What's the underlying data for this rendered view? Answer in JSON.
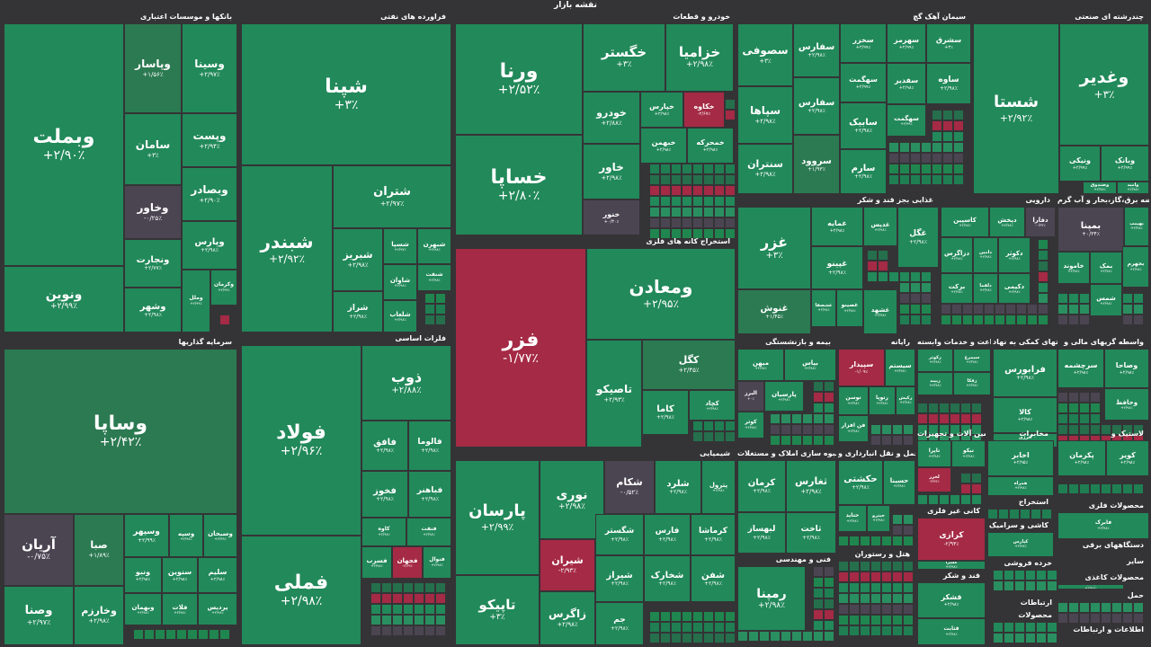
{
  "map_title": "نقشه بازار",
  "colors": {
    "up": "#22895a",
    "up_mid": "#2c7a52",
    "down": "#a52a45",
    "neutral": "#4b4552",
    "bg": "#343436"
  },
  "chart_data": {
    "type": "treemap",
    "title": "نقشه بازار",
    "sectors": [
      {
        "name": "بانکها و موسسات اعتباری",
        "tiles": [
          {
            "symbol": "وبملت",
            "change": "+۲/۹۰٪"
          },
          {
            "symbol": "وپاسار",
            "change": "+۱/۵۶٪"
          },
          {
            "symbol": "وسینا",
            "change": "+۲/۹۷٪"
          },
          {
            "symbol": "سامان",
            "change": "+۳٪"
          },
          {
            "symbol": "وپست",
            "change": "+۲/۹۴٪"
          },
          {
            "symbol": "وخاور",
            "change": "-۰/۲۵٪"
          },
          {
            "symbol": "وبصادر",
            "change": "+۲/۹۰٪"
          },
          {
            "symbol": "ونوین",
            "change": "+۲/۹۹٪"
          },
          {
            "symbol": "ونجارت",
            "change": "+۲/۷۷٪"
          },
          {
            "symbol": "وپارس",
            "change": "+۲/۹۸٪"
          },
          {
            "symbol": "وشهر",
            "change": "+۲/۹۸٪"
          },
          {
            "symbol": "وملل",
            "change": "+۲/۹۹٪"
          },
          {
            "symbol": "وکرمان",
            "change": "+۲/۹۹٪"
          }
        ]
      },
      {
        "name": "فراورده های نفتی",
        "tiles": [
          {
            "symbol": "شپنا",
            "change": "+۳٪"
          },
          {
            "symbol": "شبندر",
            "change": "+۲/۹۲٪"
          },
          {
            "symbol": "شتران",
            "change": "+۲/۹۷٪"
          },
          {
            "symbol": "شبریز",
            "change": "+۲/۹۸٪"
          },
          {
            "symbol": "شسپا",
            "change": "+۲/۹۷٪"
          },
          {
            "symbol": "شبهرن",
            "change": "+۲/۹۸٪"
          },
          {
            "symbol": "شراز",
            "change": "+۲/۹۸٪"
          },
          {
            "symbol": "شاوان",
            "change": "+۲/۹۸٪"
          },
          {
            "symbol": "شنفت",
            "change": "+۲/۹۸٪"
          },
          {
            "symbol": "شلعاب",
            "change": "+۲/۹۸٪"
          }
        ]
      },
      {
        "name": "خودرو و قطعات",
        "tiles": [
          {
            "symbol": "ورنا",
            "change": "+۲/۵۲٪"
          },
          {
            "symbol": "خگستر",
            "change": "+۳٪"
          },
          {
            "symbol": "خزامیا",
            "change": "+۲/۹۸٪"
          },
          {
            "symbol": "خساپا",
            "change": "+۲/۸۰٪"
          },
          {
            "symbol": "خودرو",
            "change": "+۲/۸۸٪"
          },
          {
            "symbol": "خپارس",
            "change": "+۲/۹۸٪"
          },
          {
            "symbol": "خکاوه",
            "change": "-۲/۶۷٪"
          },
          {
            "symbol": "خاور",
            "change": "+۲/۹۸٪"
          },
          {
            "symbol": "خبهمن",
            "change": "+۲/۹۸٪"
          },
          {
            "symbol": "خمحرکه",
            "change": "+۲/۹۸٪"
          },
          {
            "symbol": "خنور",
            "change": "+۰/۳۰٪"
          }
        ]
      },
      {
        "name": "سیمان آهک گچ",
        "tiles": [
          {
            "symbol": "سصوفی",
            "change": "+۳٪"
          },
          {
            "symbol": "سفارس",
            "change": "+۲/۹۸٪"
          },
          {
            "symbol": "سخزر",
            "change": "+۲/۹۹٪"
          },
          {
            "symbol": "سهرمز",
            "change": "+۲/۹۹٪"
          },
          {
            "symbol": "سشرق",
            "change": "+۳٪"
          },
          {
            "symbol": "سپاها",
            "change": "+۲/۹۸٪"
          },
          {
            "symbol": "سفارس",
            "change": "+۲/۹۸٪"
          },
          {
            "symbol": "سهگمت",
            "change": "+۲/۹۹٪"
          },
          {
            "symbol": "سنتران",
            "change": "+۲/۹۸٪"
          },
          {
            "symbol": "سروود",
            "change": "+۱/۹۳٪"
          },
          {
            "symbol": "سارم",
            "change": "+۲/۹۸٪"
          },
          {
            "symbol": "سابیک",
            "change": "+۲/۹۸٪"
          },
          {
            "symbol": "سفدیر",
            "change": "+۲/۹۸٪"
          },
          {
            "symbol": "ساوه",
            "change": "+۲/۹۸٪"
          },
          {
            "symbol": "سهگمت",
            "change": "+۲/۹۹٪"
          }
        ]
      },
      {
        "name": "چندرشته ای صنعتی",
        "tiles": [
          {
            "symbol": "شستا",
            "change": "+۲/۹۲٪"
          },
          {
            "symbol": "وغدیر",
            "change": "+۳٪"
          },
          {
            "symbol": "ونیکی",
            "change": "+۲/۹۹٪"
          },
          {
            "symbol": "وبانک",
            "change": "+۲/۹۹٪"
          },
          {
            "symbol": "وصندوق",
            "change": "+۲/۹۸٪"
          },
          {
            "symbol": "وامید",
            "change": "+۲/۹۸٪"
          }
        ]
      },
      {
        "name": "استخراج کانه های فلزی",
        "tiles": [
          {
            "symbol": "فزر",
            "change": "-۱/۷۷٪"
          },
          {
            "symbol": "ومعادن",
            "change": "+۲/۹۵٪"
          },
          {
            "symbol": "کگل",
            "change": "+۲/۴۵٪"
          },
          {
            "symbol": "تاصیکو",
            "change": "+۲/۹۳٪"
          },
          {
            "symbol": "کچاد",
            "change": "+۲/۹۸٪"
          },
          {
            "symbol": "کاما",
            "change": "+۲/۹۸٪"
          }
        ]
      },
      {
        "name": "غذایی بجز قند و شکر",
        "tiles": [
          {
            "symbol": "غزر",
            "change": "+۳٪"
          },
          {
            "symbol": "غمایه",
            "change": "+۲/۹۸٪"
          },
          {
            "symbol": "غدیس",
            "change": "+۲/۹۸٪"
          },
          {
            "symbol": "غگل",
            "change": "+۲/۹۸٪"
          },
          {
            "symbol": "غنوش",
            "change": "+۱/۴۵٪"
          },
          {
            "symbol": "غپینو",
            "change": "+۲/۹۸٪"
          },
          {
            "symbol": "غشصفا",
            "change": "+۲/۹۸٪"
          },
          {
            "symbol": "غصینو",
            "change": "+۲/۹۸٪"
          },
          {
            "symbol": "غشهد",
            "change": "+۲/۹۸٪"
          }
        ]
      },
      {
        "name": "دارویی",
        "tiles": [
          {
            "symbol": "کاسپین",
            "change": "+۲/۹۸٪"
          },
          {
            "symbol": "دپخش",
            "change": "+۲/۹۸٪"
          },
          {
            "symbol": "دفارا",
            "change": "-۰/۳۲٪"
          },
          {
            "symbol": "دزاگرس",
            "change": "+۲/۹۸٪"
          },
          {
            "symbol": "دامین",
            "change": "+۲/۹۸٪"
          },
          {
            "symbol": "دکوثر",
            "change": "+۲/۹۸٪"
          },
          {
            "symbol": "برکت",
            "change": "+۲/۹۸٪"
          },
          {
            "symbol": "دلقما",
            "change": "+۲/۹۸٪"
          },
          {
            "symbol": "دکیمی",
            "change": "+۲/۹۸٪"
          }
        ]
      },
      {
        "name": "عرضه برق،گاز،بخار و آب گرم",
        "tiles": [
          {
            "symbol": "بمپنا",
            "change": "+۰/۳۴٪"
          },
          {
            "symbol": "بهپمپ",
            "change": "+۲/۹۸٪"
          },
          {
            "symbol": "خاموند",
            "change": "+۲/۹۸٪"
          },
          {
            "symbol": "بمک",
            "change": "+۲/۹۸٪"
          },
          {
            "symbol": "شمس",
            "change": "+۲/۹۸٪"
          },
          {
            "symbol": "بجهرم",
            "change": "+۲/۹۸٪"
          }
        ]
      },
      {
        "name": "سرمایه گذاریها",
        "tiles": [
          {
            "symbol": "وساپا",
            "change": "+۲/۴۲٪"
          },
          {
            "symbol": "آریان",
            "change": "-۰/۷۵٪"
          },
          {
            "symbol": "صبا",
            "change": "+۱/۸۹٪"
          },
          {
            "symbol": "وسپهر",
            "change": "+۲/۹۹٪"
          },
          {
            "symbol": "وسپه",
            "change": "+۲/۹۸٪"
          },
          {
            "symbol": "وسبحان",
            "change": "+۲/۹۹٪"
          },
          {
            "symbol": "وصنا",
            "change": "+۲/۹۷٪"
          },
          {
            "symbol": "وخارزم",
            "change": "+۲/۹۸٪"
          },
          {
            "symbol": "ونبو",
            "change": "+۲/۹۸٪"
          },
          {
            "symbol": "سنوین",
            "change": "+۲/۹۸٪"
          },
          {
            "symbol": "سلیم",
            "change": "+۲/۹۸٪"
          },
          {
            "symbol": "وبهمان",
            "change": "+۲/۹۸٪"
          },
          {
            "symbol": "فلات",
            "change": "+۲/۹۸٪"
          },
          {
            "symbol": "پردیس",
            "change": "+۲/۹۸٪"
          }
        ]
      },
      {
        "name": "فلزات اساسی",
        "tiles": [
          {
            "symbol": "فولاد",
            "change": "+۲/۹۶٪"
          },
          {
            "symbol": "فملی",
            "change": "+۲/۹۸٪"
          },
          {
            "symbol": "ذوب",
            "change": "+۲/۸۸٪"
          },
          {
            "symbol": "فافق",
            "change": "+۲/۹۸٪"
          },
          {
            "symbol": "فالوما",
            "change": "+۲/۹۸٪"
          },
          {
            "symbol": "فخوز",
            "change": "+۲/۹۸٪"
          },
          {
            "symbol": "فباهنر",
            "change": "+۲/۹۸٪"
          },
          {
            "symbol": "کاوه",
            "change": "+۲/۹۸٪"
          },
          {
            "symbol": "فنفت",
            "change": "+۲/۹۸٪"
          },
          {
            "symbol": "فسرب",
            "change": "+۲/۹۸٪"
          },
          {
            "symbol": "فجهان",
            "change": "-۲/۶۹٪"
          },
          {
            "symbol": "فنوال",
            "change": "+۲/۹۸٪"
          }
        ]
      },
      {
        "name": "شیمیایی",
        "tiles": [
          {
            "symbol": "پارسان",
            "change": "+۲/۹۹٪"
          },
          {
            "symbol": "نوری",
            "change": "+۲/۹۸٪"
          },
          {
            "symbol": "شکام",
            "change": "-۰/۵۲٪"
          },
          {
            "symbol": "شلرد",
            "change": "+۲/۹۸٪"
          },
          {
            "symbol": "پترول",
            "change": "+۲/۹۸٪"
          },
          {
            "symbol": "تاپیکو",
            "change": "+۳٪"
          },
          {
            "symbol": "شیران",
            "change": "-۲/۹۳٪"
          },
          {
            "symbol": "شگستر",
            "change": "+۲/۹۸٪"
          },
          {
            "symbol": "فارس",
            "change": "+۲/۹۸٪"
          },
          {
            "symbol": "کرماشا",
            "change": "+۲/۹۸٪"
          },
          {
            "symbol": "زاگرس",
            "change": "+۲/۹۸٪"
          },
          {
            "symbol": "شیراز",
            "change": "+۲/۹۸٪"
          },
          {
            "symbol": "شخارک",
            "change": "+۲/۹۸٪"
          },
          {
            "symbol": "شفن",
            "change": "+۲/۹۸٪"
          },
          {
            "symbol": "جم",
            "change": "+۲/۹۸٪"
          }
        ]
      },
      {
        "name": "بیمه و بازنشستگی",
        "tiles": [
          {
            "symbol": "میهن",
            "change": "+۲/۹۸٪"
          },
          {
            "symbol": "بپاس",
            "change": "+۲/۹۸٪"
          },
          {
            "symbol": "البرز",
            "change": "+۰٪"
          },
          {
            "symbol": "پارسیان",
            "change": "+۲/۹۸٪"
          },
          {
            "symbol": "کوثر",
            "change": "+۲/۹۸٪"
          }
        ]
      },
      {
        "name": "رایانه",
        "tiles": [
          {
            "symbol": "سپیدار",
            "change": "-۱/۰۹٪"
          },
          {
            "symbol": "سیستم",
            "change": "+۲/۹۸٪"
          },
          {
            "symbol": "توسن",
            "change": "+۲/۹۸٪"
          },
          {
            "symbol": "رتوپا",
            "change": "+۲/۹۸٪"
          },
          {
            "symbol": "رکیش",
            "change": "+۲/۹۸٪"
          },
          {
            "symbol": "فن افزار",
            "change": "+۲/۹۸٪"
          }
        ]
      },
      {
        "name": "زراعت و خدمات وابسته",
        "tiles": [
          {
            "symbol": "زکوثر",
            "change": "+۲/۹۸٪"
          },
          {
            "symbol": "سیمرغ",
            "change": "+۲/۹۸٪"
          },
          {
            "symbol": "زپیبد",
            "change": "+۲/۹۸٪"
          },
          {
            "symbol": "زفکا",
            "change": "+۲/۹۸٪"
          }
        ]
      },
      {
        "name": "فعالیتهای کمکی به نهاد",
        "tiles": [
          {
            "symbol": "فرابورس",
            "change": "+۲/۹۸٪"
          },
          {
            "symbol": "کالا",
            "change": "+۲/۹۸٪"
          },
          {
            "symbol": "انرژی",
            "change": "+۲/۹۸٪"
          }
        ]
      },
      {
        "name": "واسطه گریهای مالی و",
        "tiles": [
          {
            "symbol": "سرچشمه",
            "change": "+۲/۹۸٪"
          },
          {
            "symbol": "وصاحا",
            "change": "+۲/۹۸٪"
          },
          {
            "symbol": "وحافظ",
            "change": "+۲/۹۸٪"
          }
        ]
      },
      {
        "name": "انبوه سازی املاک و مستغلات",
        "tiles": [
          {
            "symbol": "کرمان",
            "change": "+۲/۹۸٪"
          },
          {
            "symbol": "ثغارس",
            "change": "+۲/۹۸٪"
          },
          {
            "symbol": "لبهساز",
            "change": "+۲/۹۸٪"
          },
          {
            "symbol": "ثاخت",
            "change": "+۲/۹۸٪"
          },
          {
            "symbol": "ثامید",
            "change": "+۲/۹۸٪"
          }
        ]
      },
      {
        "name": "حمل و نقل انبارداری و",
        "tiles": [
          {
            "symbol": "حکشتی",
            "change": "+۲/۹۸٪"
          },
          {
            "symbol": "حسینا",
            "change": "+۲/۹۸٪"
          },
          {
            "symbol": "حتاید",
            "change": "+۲/۹۸٪"
          },
          {
            "symbol": "حپترو",
            "change": "+۲/۹۸٪"
          }
        ]
      },
      {
        "name": "ماشین آلات و تجهیزات",
        "tiles": [
          {
            "symbol": "تاپرا",
            "change": "+۲/۹۸٪"
          },
          {
            "symbol": "تیکو",
            "change": "+۲/۹۸٪"
          },
          {
            "symbol": "لخزر",
            "change": "-۲/۹۴٪"
          }
        ]
      },
      {
        "name": "مخابرات",
        "tiles": [
          {
            "symbol": "اخابر",
            "change": "+۲/۹۵٪"
          },
          {
            "symbol": "همراه",
            "change": "+۲/۹۸٪"
          }
        ]
      },
      {
        "name": "لاستیک و",
        "tiles": [
          {
            "symbol": "پکرمان",
            "change": "+۲/۹۸٪"
          },
          {
            "symbol": "کویر",
            "change": "+۲/۹۸٪"
          }
        ]
      },
      {
        "name": "محصولات فلزی",
        "tiles": [
          {
            "symbol": "فابرک",
            "change": "+۲/۹۸٪"
          }
        ]
      },
      {
        "name": "هتل و رستوران",
        "tiles": []
      },
      {
        "name": "کانی غیر فلزی",
        "tiles": [
          {
            "symbol": "کرازی",
            "change": "-۲/۹۴٪"
          },
          {
            "symbol": "کسرا",
            "change": "+۲/۹۸٪"
          },
          {
            "symbol": "کاذر",
            "change": "+۲/۹۸٪"
          },
          {
            "symbol": "کثقان",
            "change": "+۲/۹۸٪"
          }
        ]
      },
      {
        "name": "قند و شکر",
        "tiles": [
          {
            "symbol": "قشکر",
            "change": "+۲/۹۸٪"
          },
          {
            "symbol": "قثابت",
            "change": "+۲/۹۸٪"
          }
        ]
      },
      {
        "name": "فنی و مهندسی",
        "tiles": [
          {
            "symbol": "رمپنا",
            "change": "+۲/۹۸٪"
          }
        ]
      },
      {
        "name": "دستگاههای برقی",
        "tiles": [
          {
            "symbol": "بترانس",
            "change": "+۳٪"
          },
          {
            "symbol": "بنیرو",
            "change": "+۲/۹۸٪"
          },
          {
            "symbol": "بموتو",
            "change": "+۲/۹۸٪"
          },
          {
            "symbol": "بشهاب",
            "change": "+۲/۹۸٪"
          }
        ]
      },
      {
        "name": "خرده فروشی",
        "tiles": []
      },
      {
        "name": "سایر",
        "tiles": []
      },
      {
        "name": "ارتباطات",
        "tiles": []
      },
      {
        "name": "استخراج",
        "tiles": []
      },
      {
        "name": "کاشی و سرامیک",
        "tiles": [
          {
            "symbol": "کپارس",
            "change": "+۲/۹۸٪"
          }
        ]
      },
      {
        "name": "محصولات کاغذی",
        "tiles": [
          {
            "symbol": "چکاپا",
            "change": "+۲/۹۸٪"
          }
        ]
      },
      {
        "name": "حمل",
        "tiles": []
      },
      {
        "name": "محصولات",
        "tiles": []
      },
      {
        "name": "اطلاعات و ارتباطات",
        "tiles": []
      },
      {
        "name": "محصولات چوبی",
        "tiles": []
      },
      {
        "name": "منسوجات",
        "tiles": []
      }
    ]
  }
}
